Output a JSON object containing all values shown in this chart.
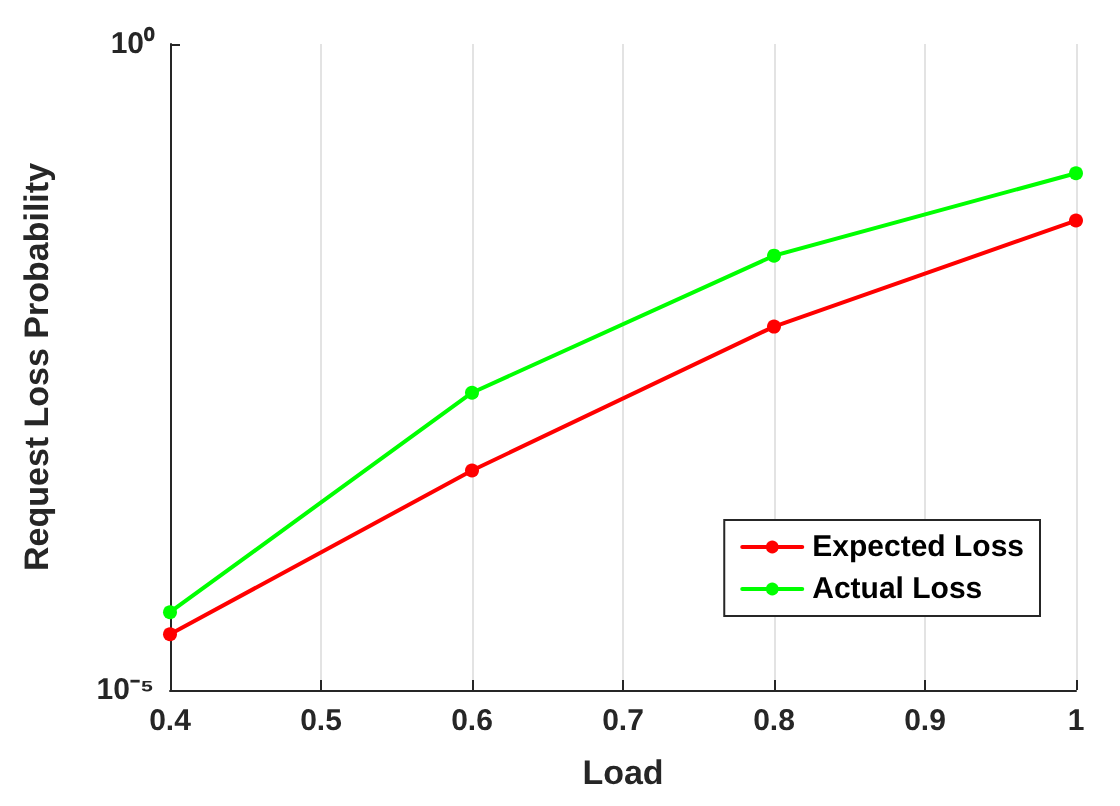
{
  "chart_data": {
    "type": "line",
    "xlabel": "Load",
    "ylabel": "Request Loss Probability",
    "x": [
      0.4,
      0.6,
      0.8,
      1
    ],
    "series": [
      {
        "name": "Expected Loss",
        "color": "#ff0000",
        "values": [
          2.7e-05,
          0.0005,
          0.0065,
          0.043
        ]
      },
      {
        "name": "Actual Loss",
        "color": "#00ff00",
        "values": [
          4e-05,
          0.002,
          0.023,
          0.1
        ]
      }
    ],
    "xlim": [
      0.4,
      1
    ],
    "xticks": [
      0.4,
      0.5,
      0.6,
      0.7,
      0.8,
      0.9,
      1
    ],
    "ylim": [
      1e-05,
      1
    ],
    "yticks": [
      {
        "value": 1e-05,
        "label": "10⁻⁵"
      },
      {
        "value": 1,
        "label": "10⁰"
      }
    ],
    "log": true,
    "grid": "x",
    "legend": "bottom right",
    "marker": "circle",
    "line_style": "solid"
  }
}
